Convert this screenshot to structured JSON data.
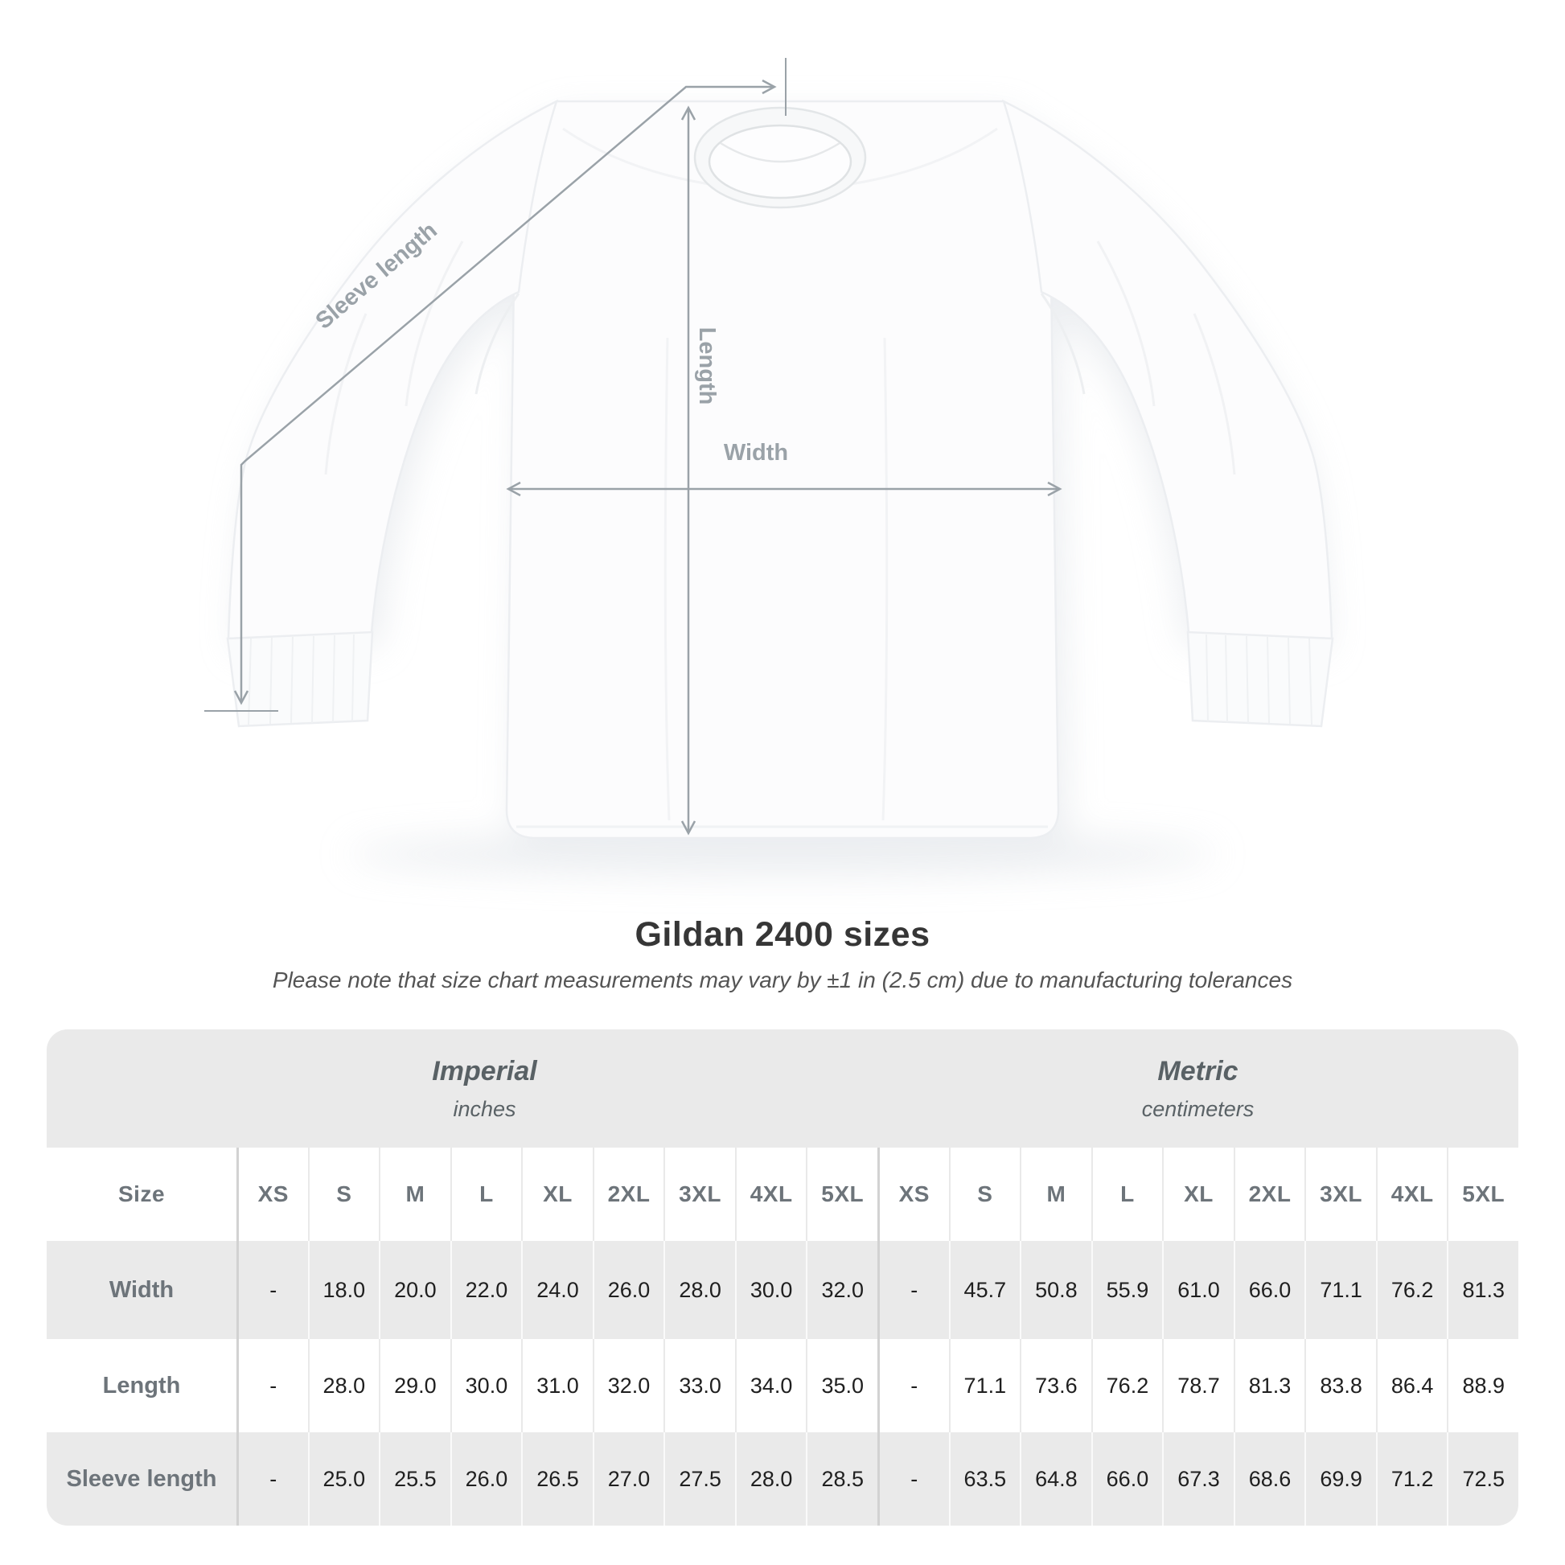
{
  "page": {
    "background": "#ffffff"
  },
  "figure": {
    "sleeve_label": "Sleeve length",
    "length_label": "Length",
    "width_label": "Width",
    "annotation_color": "#9aa2a8"
  },
  "title": "Gildan 2400 sizes",
  "subtitle": "Please note that size chart measurements may vary by ±1 in (2.5 cm) due to manufacturing tolerances",
  "chart_data": {
    "type": "table",
    "title": "Gildan 2400 sizes",
    "column_groups": [
      {
        "label": "Imperial",
        "sublabel": "inches"
      },
      {
        "label": "Metric",
        "sublabel": "centimeters"
      }
    ],
    "size_column_header": "Size",
    "sizes": [
      "XS",
      "S",
      "M",
      "L",
      "XL",
      "2XL",
      "3XL",
      "4XL",
      "5XL"
    ],
    "rows": [
      {
        "label": "Width",
        "imperial": [
          "-",
          "18.0",
          "20.0",
          "22.0",
          "24.0",
          "26.0",
          "28.0",
          "30.0",
          "32.0"
        ],
        "metric": [
          "-",
          "45.7",
          "50.8",
          "55.9",
          "61.0",
          "66.0",
          "71.1",
          "76.2",
          "81.3"
        ]
      },
      {
        "label": "Length",
        "imperial": [
          "-",
          "28.0",
          "29.0",
          "30.0",
          "31.0",
          "32.0",
          "33.0",
          "34.0",
          "35.0"
        ],
        "metric": [
          "-",
          "71.1",
          "73.6",
          "76.2",
          "78.7",
          "81.3",
          "83.8",
          "86.4",
          "88.9"
        ]
      },
      {
        "label": "Sleeve length",
        "imperial": [
          "-",
          "25.0",
          "25.5",
          "26.0",
          "26.5",
          "27.0",
          "27.5",
          "28.0",
          "28.5"
        ],
        "metric": [
          "-",
          "63.5",
          "64.8",
          "66.0",
          "67.3",
          "68.6",
          "69.9",
          "71.2",
          "72.5"
        ]
      }
    ]
  },
  "colors": {
    "table_band": "#eaeaea",
    "row_stripe": "#eaeaea",
    "divider_strong": "#d2d2d2",
    "title_text": "#363636",
    "subtitle_text": "#545454",
    "group_text": "#596165",
    "header_text": "#6d747a",
    "value_text": "#1f1f1f",
    "annotation": "#9aa2a8"
  }
}
